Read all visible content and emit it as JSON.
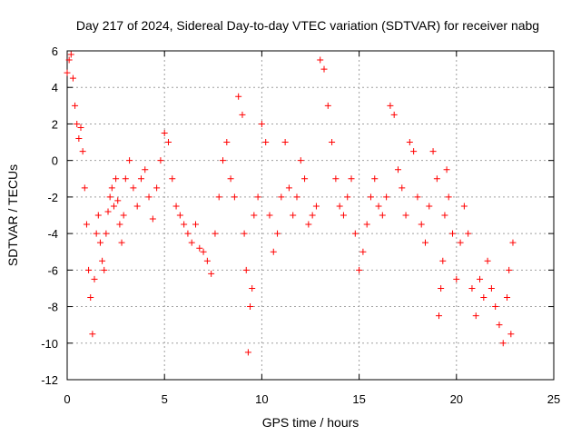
{
  "chart_data": {
    "type": "scatter",
    "title": "Day 217 of 2024, Sidereal Day-to-day VTEC variation (SDTVAR) for receiver nabg",
    "xlabel": "GPS time / hours",
    "ylabel": "SDTVAR / TECUs",
    "xlim": [
      0,
      25
    ],
    "ylim": [
      -12,
      6
    ],
    "xticks": [
      0,
      5,
      10,
      15,
      20,
      25
    ],
    "yticks": [
      -12,
      -10,
      -8,
      -6,
      -4,
      -2,
      0,
      2,
      4,
      6
    ],
    "grid": true,
    "marker": "+",
    "series": [
      {
        "name": "SDTVAR",
        "color": "#ff0000",
        "points": [
          [
            0.0,
            4.8
          ],
          [
            0.1,
            5.5
          ],
          [
            0.2,
            5.8
          ],
          [
            0.3,
            4.5
          ],
          [
            0.4,
            3.0
          ],
          [
            0.5,
            2.0
          ],
          [
            0.6,
            1.2
          ],
          [
            0.7,
            1.8
          ],
          [
            0.8,
            0.5
          ],
          [
            0.9,
            -1.5
          ],
          [
            1.0,
            -3.5
          ],
          [
            1.1,
            -6.0
          ],
          [
            1.2,
            -7.5
          ],
          [
            1.3,
            -9.5
          ],
          [
            1.4,
            -6.5
          ],
          [
            1.5,
            -4.0
          ],
          [
            1.6,
            -3.0
          ],
          [
            1.7,
            -4.5
          ],
          [
            1.8,
            -5.5
          ],
          [
            1.9,
            -6.0
          ],
          [
            2.0,
            -4.0
          ],
          [
            2.1,
            -2.8
          ],
          [
            2.2,
            -2.0
          ],
          [
            2.3,
            -1.5
          ],
          [
            2.4,
            -2.5
          ],
          [
            2.5,
            -1.0
          ],
          [
            2.6,
            -2.2
          ],
          [
            2.7,
            -3.5
          ],
          [
            2.8,
            -4.5
          ],
          [
            2.9,
            -3.0
          ],
          [
            3.0,
            -1.0
          ],
          [
            3.2,
            0.0
          ],
          [
            3.4,
            -1.5
          ],
          [
            3.6,
            -2.5
          ],
          [
            3.8,
            -1.0
          ],
          [
            4.0,
            -0.5
          ],
          [
            4.2,
            -2.0
          ],
          [
            4.4,
            -3.2
          ],
          [
            4.6,
            -1.5
          ],
          [
            4.8,
            0.0
          ],
          [
            5.0,
            1.5
          ],
          [
            5.2,
            1.0
          ],
          [
            5.4,
            -1.0
          ],
          [
            5.6,
            -2.5
          ],
          [
            5.8,
            -3.0
          ],
          [
            6.0,
            -3.5
          ],
          [
            6.2,
            -4.0
          ],
          [
            6.4,
            -4.5
          ],
          [
            6.6,
            -3.5
          ],
          [
            6.8,
            -4.8
          ],
          [
            7.0,
            -5.0
          ],
          [
            7.2,
            -5.5
          ],
          [
            7.4,
            -6.2
          ],
          [
            7.6,
            -4.0
          ],
          [
            7.8,
            -2.0
          ],
          [
            8.0,
            0.0
          ],
          [
            8.2,
            1.0
          ],
          [
            8.4,
            -1.0
          ],
          [
            8.6,
            -2.0
          ],
          [
            8.8,
            3.5
          ],
          [
            9.0,
            2.5
          ],
          [
            9.1,
            -4.0
          ],
          [
            9.2,
            -6.0
          ],
          [
            9.3,
            -10.5
          ],
          [
            9.4,
            -8.0
          ],
          [
            9.5,
            -7.0
          ],
          [
            9.6,
            -3.0
          ],
          [
            9.8,
            -2.0
          ],
          [
            10.0,
            2.0
          ],
          [
            10.2,
            1.0
          ],
          [
            10.4,
            -3.0
          ],
          [
            10.6,
            -5.0
          ],
          [
            10.8,
            -4.0
          ],
          [
            11.0,
            -2.0
          ],
          [
            11.2,
            1.0
          ],
          [
            11.4,
            -1.5
          ],
          [
            11.6,
            -3.0
          ],
          [
            11.8,
            -2.0
          ],
          [
            12.0,
            0.0
          ],
          [
            12.2,
            -1.0
          ],
          [
            12.4,
            -3.5
          ],
          [
            12.6,
            -3.0
          ],
          [
            12.8,
            -2.5
          ],
          [
            13.0,
            5.5
          ],
          [
            13.2,
            5.0
          ],
          [
            13.4,
            3.0
          ],
          [
            13.6,
            1.0
          ],
          [
            13.8,
            -1.0
          ],
          [
            14.0,
            -2.5
          ],
          [
            14.2,
            -3.0
          ],
          [
            14.4,
            -2.0
          ],
          [
            14.6,
            -1.0
          ],
          [
            14.8,
            -4.0
          ],
          [
            15.0,
            -6.0
          ],
          [
            15.2,
            -5.0
          ],
          [
            15.4,
            -3.5
          ],
          [
            15.6,
            -2.0
          ],
          [
            15.8,
            -1.0
          ],
          [
            16.0,
            -2.5
          ],
          [
            16.2,
            -3.0
          ],
          [
            16.4,
            -2.0
          ],
          [
            16.6,
            3.0
          ],
          [
            16.8,
            2.5
          ],
          [
            17.0,
            -0.5
          ],
          [
            17.2,
            -1.5
          ],
          [
            17.4,
            -3.0
          ],
          [
            17.6,
            1.0
          ],
          [
            17.8,
            0.5
          ],
          [
            18.0,
            -2.0
          ],
          [
            18.2,
            -3.5
          ],
          [
            18.4,
            -4.5
          ],
          [
            18.6,
            -2.5
          ],
          [
            18.8,
            0.5
          ],
          [
            19.0,
            -1.0
          ],
          [
            19.1,
            -8.5
          ],
          [
            19.2,
            -7.0
          ],
          [
            19.3,
            -5.5
          ],
          [
            19.4,
            -3.0
          ],
          [
            19.5,
            -0.5
          ],
          [
            19.6,
            -2.0
          ],
          [
            19.8,
            -4.0
          ],
          [
            20.0,
            -6.5
          ],
          [
            20.2,
            -4.5
          ],
          [
            20.4,
            -2.5
          ],
          [
            20.6,
            -4.0
          ],
          [
            20.8,
            -7.0
          ],
          [
            21.0,
            -8.5
          ],
          [
            21.2,
            -6.5
          ],
          [
            21.4,
            -7.5
          ],
          [
            21.6,
            -5.5
          ],
          [
            21.8,
            -7.0
          ],
          [
            22.0,
            -8.0
          ],
          [
            22.2,
            -9.0
          ],
          [
            22.4,
            -10.0
          ],
          [
            22.6,
            -7.5
          ],
          [
            22.7,
            -6.0
          ],
          [
            22.8,
            -9.5
          ],
          [
            22.9,
            -4.5
          ]
        ]
      }
    ]
  }
}
